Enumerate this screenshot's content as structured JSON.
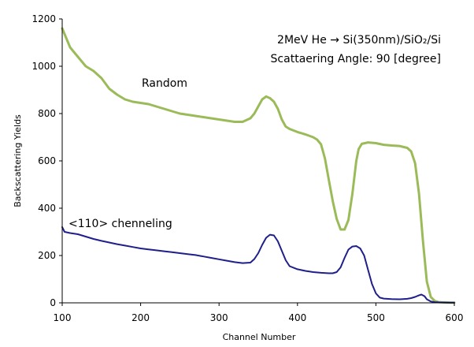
{
  "chart_data": {
    "type": "line",
    "xlabel": "Channel Number",
    "ylabel": "Backscattering Yields",
    "xlim": [
      100,
      600
    ],
    "ylim": [
      0,
      1200
    ],
    "xticks": [
      100,
      200,
      300,
      400,
      500,
      600
    ],
    "yticks": [
      0,
      200,
      400,
      600,
      800,
      1000,
      1200
    ],
    "grid": false,
    "annotations": [
      "2MeV He → Si(350nm)/SiO₂/Si",
      "Scattaering Angle: 90 [degree]"
    ],
    "series": [
      {
        "name": "Random",
        "color": "#9bbb59",
        "points": [
          [
            100,
            1160
          ],
          [
            105,
            1120
          ],
          [
            110,
            1080
          ],
          [
            115,
            1060
          ],
          [
            120,
            1040
          ],
          [
            125,
            1020
          ],
          [
            130,
            1000
          ],
          [
            140,
            980
          ],
          [
            150,
            950
          ],
          [
            160,
            905
          ],
          [
            170,
            880
          ],
          [
            180,
            860
          ],
          [
            190,
            850
          ],
          [
            200,
            845
          ],
          [
            210,
            840
          ],
          [
            220,
            830
          ],
          [
            230,
            820
          ],
          [
            240,
            810
          ],
          [
            250,
            800
          ],
          [
            260,
            795
          ],
          [
            270,
            790
          ],
          [
            280,
            785
          ],
          [
            290,
            780
          ],
          [
            300,
            775
          ],
          [
            310,
            770
          ],
          [
            320,
            765
          ],
          [
            330,
            765
          ],
          [
            340,
            780
          ],
          [
            345,
            800
          ],
          [
            350,
            830
          ],
          [
            355,
            860
          ],
          [
            360,
            872
          ],
          [
            365,
            865
          ],
          [
            370,
            850
          ],
          [
            375,
            820
          ],
          [
            380,
            775
          ],
          [
            385,
            745
          ],
          [
            390,
            735
          ],
          [
            400,
            722
          ],
          [
            410,
            712
          ],
          [
            420,
            700
          ],
          [
            425,
            690
          ],
          [
            430,
            670
          ],
          [
            435,
            610
          ],
          [
            440,
            520
          ],
          [
            445,
            430
          ],
          [
            450,
            355
          ],
          [
            455,
            310
          ],
          [
            460,
            310
          ],
          [
            465,
            350
          ],
          [
            470,
            460
          ],
          [
            475,
            600
          ],
          [
            478,
            650
          ],
          [
            482,
            672
          ],
          [
            490,
            678
          ],
          [
            500,
            675
          ],
          [
            510,
            668
          ],
          [
            520,
            665
          ],
          [
            530,
            663
          ],
          [
            540,
            655
          ],
          [
            545,
            640
          ],
          [
            550,
            590
          ],
          [
            555,
            460
          ],
          [
            560,
            260
          ],
          [
            565,
            90
          ],
          [
            570,
            25
          ],
          [
            575,
            8
          ],
          [
            580,
            3
          ],
          [
            585,
            2
          ],
          [
            590,
            2
          ],
          [
            595,
            1
          ],
          [
            600,
            1
          ]
        ]
      },
      {
        "name": "<110> chenneling",
        "color": "#1f1f8b",
        "points": [
          [
            100,
            320
          ],
          [
            103,
            300
          ],
          [
            110,
            295
          ],
          [
            120,
            290
          ],
          [
            130,
            280
          ],
          [
            140,
            270
          ],
          [
            150,
            262
          ],
          [
            160,
            255
          ],
          [
            170,
            248
          ],
          [
            180,
            242
          ],
          [
            190,
            236
          ],
          [
            200,
            230
          ],
          [
            210,
            226
          ],
          [
            220,
            222
          ],
          [
            230,
            218
          ],
          [
            240,
            214
          ],
          [
            250,
            210
          ],
          [
            260,
            206
          ],
          [
            270,
            202
          ],
          [
            280,
            196
          ],
          [
            290,
            190
          ],
          [
            300,
            184
          ],
          [
            310,
            178
          ],
          [
            320,
            172
          ],
          [
            330,
            168
          ],
          [
            340,
            170
          ],
          [
            345,
            185
          ],
          [
            350,
            210
          ],
          [
            355,
            245
          ],
          [
            360,
            275
          ],
          [
            365,
            288
          ],
          [
            370,
            285
          ],
          [
            375,
            260
          ],
          [
            380,
            220
          ],
          [
            385,
            180
          ],
          [
            390,
            155
          ],
          [
            400,
            142
          ],
          [
            410,
            135
          ],
          [
            420,
            130
          ],
          [
            430,
            127
          ],
          [
            440,
            125
          ],
          [
            445,
            125
          ],
          [
            450,
            130
          ],
          [
            455,
            150
          ],
          [
            460,
            190
          ],
          [
            465,
            225
          ],
          [
            470,
            238
          ],
          [
            475,
            240
          ],
          [
            480,
            230
          ],
          [
            485,
            200
          ],
          [
            490,
            140
          ],
          [
            495,
            80
          ],
          [
            500,
            40
          ],
          [
            505,
            22
          ],
          [
            510,
            18
          ],
          [
            520,
            16
          ],
          [
            530,
            15
          ],
          [
            540,
            17
          ],
          [
            545,
            20
          ],
          [
            550,
            25
          ],
          [
            555,
            32
          ],
          [
            558,
            35
          ],
          [
            562,
            28
          ],
          [
            565,
            15
          ],
          [
            570,
            6
          ],
          [
            575,
            3
          ],
          [
            580,
            2
          ],
          [
            590,
            1
          ],
          [
            600,
            1
          ]
        ]
      }
    ]
  }
}
